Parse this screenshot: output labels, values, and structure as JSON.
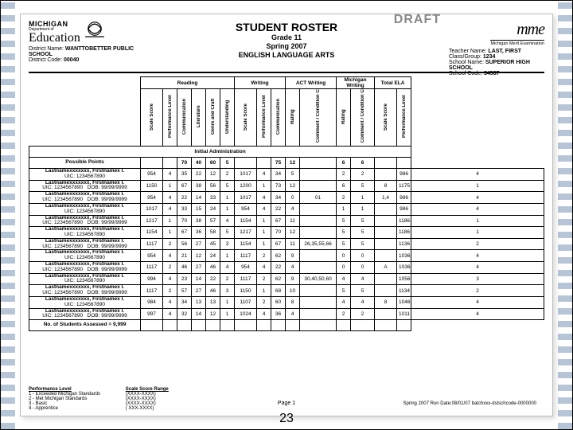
{
  "draft": "DRAFT",
  "header": {
    "title": "STUDENT ROSTER",
    "grade": "Grade 11",
    "term": "Spring 2007",
    "subject": "ENGLISH LANGUAGE ARTS",
    "mich": "MICHIGAN",
    "dept": "Department of",
    "ed": "Education",
    "district_name_label": "District Name:",
    "district_name": "WANTTOBETTER PUBLIC SCHOOL",
    "district_code_label": "District Code:",
    "district_code": "00040",
    "mme": "mme",
    "mme_sub": "Michigan Merit Examination",
    "teacher_label": "Teacher Name:",
    "teacher": "LAST, FIRST",
    "class_label": "Class/Group:",
    "class": "1234",
    "school_label": "School Name:",
    "school": "SUPERIOR HIGH SCHOOL",
    "schoolcode_label": "School Code:",
    "schoolcode": "34567"
  },
  "groups": {
    "reading": "Reading",
    "writing": "Writing",
    "act": "ACT Writing",
    "mich": "Michigan Writing",
    "total": "Total ELA"
  },
  "cols": [
    "Scale Score",
    "Performance Level",
    "Communication",
    "Literature",
    "Genre and Craft",
    "Understanding",
    "Scale Score",
    "Performance Level",
    "Communication",
    "Rating",
    "Comment / Condition Codes",
    "Rating",
    "Comment / Condition Codes",
    "Scale Score",
    "Performance Level"
  ],
  "sections": {
    "init": "Initial Administration",
    "possible": "Possible Points",
    "count": "No. of Students Assessed = 9,999"
  },
  "possible": [
    "",
    "",
    "70",
    "40",
    "60",
    "5",
    "",
    "",
    "75",
    "12",
    "",
    "6",
    "6",
    "",
    ""
  ],
  "rows": [
    {
      "name": "Lastnamexxxxxxx, Firstnamex I.",
      "uic": "UIC: 1234567890",
      "dob": "",
      "v": [
        "954",
        "4",
        "35",
        "22",
        "12",
        "2",
        "1017",
        "4",
        "34",
        "5",
        "",
        "2",
        "2",
        "",
        "986",
        "4"
      ]
    },
    {
      "name": "Lastnamexxxxxxx, Firstnamex I.",
      "uic": "UIC: 1234567890",
      "dob": "DOB: 99/99/9999",
      "v": [
        "1150",
        "1",
        "67",
        "38",
        "56",
        "5",
        "1200",
        "1",
        "73",
        "12",
        "",
        "6",
        "5",
        "8",
        "1175",
        "1"
      ]
    },
    {
      "name": "Lastnamexxxxxxx, Firstnamex I.",
      "uic": "UIC: 1234567890",
      "dob": "DOB: 99/99/9999",
      "v": [
        "954",
        "4",
        "22",
        "14",
        "33",
        "1",
        "1017",
        "4",
        "34",
        "0",
        "01",
        "2",
        "1",
        "1,4",
        "986",
        "4"
      ]
    },
    {
      "name": "Lastnamexxxxxxx, Firstnamex I.",
      "uic": "UIC: 1234567890",
      "dob": "",
      "v": [
        "1017",
        "4",
        "33",
        "15",
        "24",
        "1",
        "954",
        "4",
        "22",
        "4",
        "",
        "1",
        "1",
        "",
        "986",
        "4"
      ]
    },
    {
      "name": "Lastnamexxxxxxx, Firstnamex I.",
      "uic": "UIC: 1234567890",
      "dob": "DOB: 99/99/9999",
      "v": [
        "1217",
        "1",
        "70",
        "38",
        "57",
        "4",
        "1154",
        "1",
        "67",
        "11",
        "",
        "5",
        "5",
        "",
        "1186",
        "1"
      ]
    },
    {
      "name": "Lastnamexxxxxxx, Firstnamex I.",
      "uic": "UIC: 1234567890",
      "dob": "",
      "v": [
        "1154",
        "1",
        "67",
        "36",
        "58",
        "5",
        "1217",
        "1",
        "70",
        "12",
        "",
        "5",
        "5",
        "",
        "1186",
        "1"
      ]
    },
    {
      "name": "Lastnamexxxxxxx, Firstnamex I.",
      "uic": "UIC: 1234567890",
      "dob": "DOB: 99/99/9999",
      "v": [
        "1117",
        "2",
        "56",
        "27",
        "45",
        "3",
        "1154",
        "1",
        "67",
        "11",
        "26,35,55,66",
        "5",
        "5",
        "",
        "1136",
        "2"
      ]
    },
    {
      "name": "Lastnamexxxxxxx, Firstnamex I.",
      "uic": "UIC: 1234567890",
      "dob": "",
      "v": [
        "954",
        "4",
        "21",
        "12",
        "24",
        "1",
        "1117",
        "2",
        "62",
        "9",
        "",
        "0",
        "0",
        "",
        "1036",
        "4"
      ]
    },
    {
      "name": "Lastnamexxxxxxx, Firstnamex I.",
      "uic": "UIC: 1234567890",
      "dob": "DOB: 99/99/9999",
      "v": [
        "1117",
        "2",
        "46",
        "27",
        "46",
        "4",
        "954",
        "4",
        "22",
        "4",
        "",
        "0",
        "0",
        "A",
        "1036",
        "4"
      ]
    },
    {
      "name": "Lastnamexxxxxxx, Firstnamex I.",
      "uic": "UIC: 1234567890",
      "dob": "",
      "v": [
        "994",
        "4",
        "23",
        "14",
        "22",
        "2",
        "1117",
        "2",
        "62",
        "9",
        "30,40,50,60",
        "4",
        "4",
        "",
        "1056",
        "3"
      ]
    },
    {
      "name": "Lastnamexxxxxxx, Firstnamex I.",
      "uic": "UIC: 1234567890",
      "dob": "DOB: 99/99/9999",
      "v": [
        "1117",
        "2",
        "57",
        "27",
        "46",
        "3",
        "1150",
        "1",
        "68",
        "10",
        "",
        "5",
        "5",
        "",
        "1134",
        "2"
      ]
    },
    {
      "name": "Lastnamexxxxxxx, Firstnamex I.",
      "uic": "UIC: 1234567890",
      "dob": "",
      "v": [
        "984",
        "4",
        "34",
        "13",
        "13",
        "1",
        "1107",
        "2",
        "60",
        "8",
        "",
        "4",
        "4",
        "8",
        "1046",
        "4"
      ]
    },
    {
      "name": "Lastnamexxxxxxx, Firstnamex I.",
      "uic": "UIC: 1234567890",
      "dob": "DOB: 99/99/9999",
      "v": [
        "997",
        "4",
        "32",
        "14",
        "12",
        "1",
        "1024",
        "4",
        "36",
        "4",
        "",
        "2",
        "2",
        "",
        "1011",
        "4"
      ]
    }
  ],
  "footer": {
    "perf_title": "Performance Level",
    "perf": [
      "1 - Exceeded Michigan Standards",
      "2 - Met Michigan Standards",
      "3 - Basic",
      "4 - Apprentice"
    ],
    "range_title": "Scale Score Range",
    "range": [
      "(XXXX-XXXX)",
      "(XXXX-XXXX)",
      "(XXXX-XXXX)",
      "( XXX-XXXX)"
    ],
    "page": "Page 1",
    "run": "Spring 2007   Run Date:08/01/07   batchxxx-dstschcode-0000000"
  },
  "slidenum": "23"
}
